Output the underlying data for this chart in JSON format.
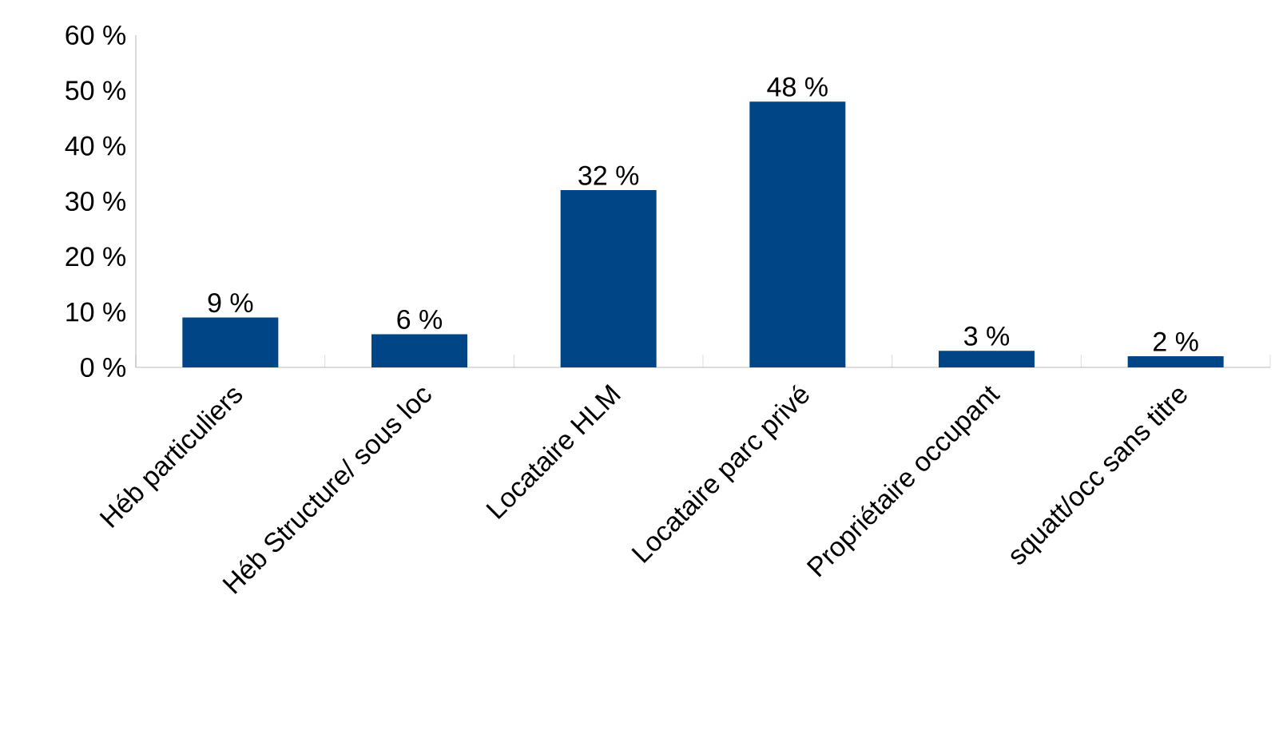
{
  "chart_data": {
    "type": "bar",
    "categories": [
      "Héb particuliers",
      "Héb Structure/ sous loc",
      "Locataire HLM",
      "Locataire parc privé",
      "Propriétaire occupant",
      "squatt/occ sans titre"
    ],
    "values": [
      9,
      6,
      32,
      48,
      3,
      2
    ],
    "value_labels": [
      "9 %",
      "6 %",
      "32 %",
      "48 %",
      "3 %",
      "2 %"
    ],
    "color": "#004586",
    "ylim": [
      0,
      60
    ],
    "yticks": [
      {
        "value": 0,
        "label": "0 %"
      },
      {
        "value": 10,
        "label": "10 %"
      },
      {
        "value": 20,
        "label": "20 %"
      },
      {
        "value": 30,
        "label": "30 %"
      },
      {
        "value": 40,
        "label": "40 %"
      },
      {
        "value": 50,
        "label": "50 %"
      },
      {
        "value": 60,
        "label": "60 %"
      }
    ],
    "grid": false
  }
}
